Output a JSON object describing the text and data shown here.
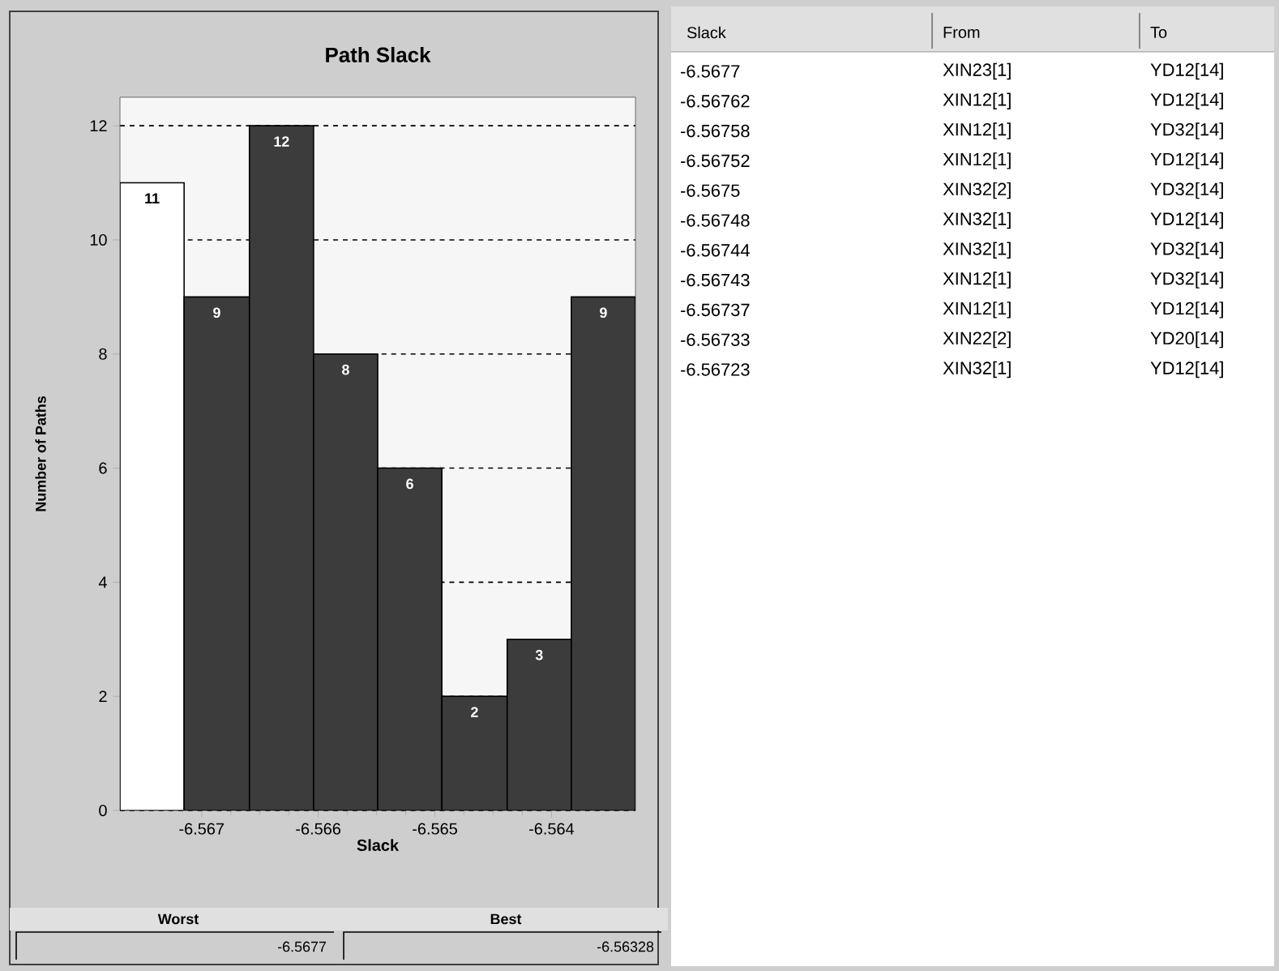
{
  "chart_data": [
    {
      "type": "histogram",
      "title": "Path Slack",
      "xlabel": "Slack",
      "ylabel": "Number of Paths",
      "bins": [
        -6.5677,
        -6.56715,
        -6.56659,
        -6.56604,
        -6.56549,
        -6.56494,
        -6.56438,
        -6.56383,
        -6.56328
      ],
      "values": [
        11,
        9,
        12,
        8,
        6,
        2,
        3,
        9
      ],
      "colors": [
        "#ffffff",
        "#3c3c3c",
        "#3c3c3c",
        "#3c3c3c",
        "#3c3c3c",
        "#3c3c3c",
        "#3c3c3c",
        "#3c3c3c"
      ],
      "data_labels": true,
      "grid": "y",
      "xlim": [
        -6.5677,
        -6.56328
      ],
      "xticks": [
        -6.567,
        -6.566,
        -6.565,
        -6.564
      ],
      "ylim": [
        0,
        12.5
      ],
      "yticks": [
        0,
        2,
        4,
        6,
        8,
        10,
        12
      ],
      "annotations": [
        "Worst",
        "-6.5677",
        "Best",
        "-6.56328"
      ]
    },
    {
      "type": "other",
      "categories": [
        "Slack",
        "From",
        "To"
      ],
      "annotations": [
        "-6.5677",
        "XIN23[1]",
        "YD12[14]",
        "-6.56762",
        "XIN12[1]",
        "YD12[14]",
        "-6.56758",
        "XIN12[1]",
        "YD32[14]",
        "-6.56752",
        "XIN12[1]",
        "YD12[14]",
        "-6.5675",
        "XIN32[2]",
        "YD32[14]",
        "-6.56748",
        "XIN32[1]",
        "YD12[14]",
        "-6.56744",
        "XIN32[1]",
        "YD32[14]",
        "-6.56743",
        "XIN12[1]",
        "YD32[14]",
        "-6.56737",
        "XIN12[1]",
        "YD12[14]",
        "-6.56733",
        "XIN22[2]",
        "YD20[14]",
        "-6.56723",
        "XIN32[1]",
        "YD12[14]"
      ]
    }
  ]
}
